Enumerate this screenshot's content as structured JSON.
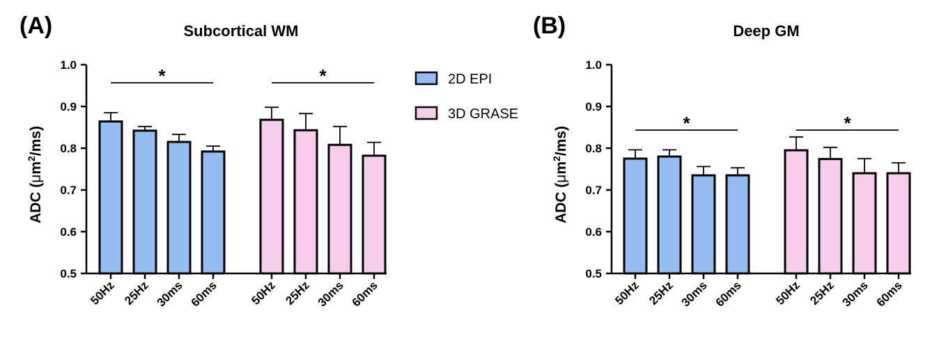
{
  "panels": [
    {
      "label": "(A)"
    },
    {
      "label": "(B)"
    }
  ],
  "legend": [
    {
      "name": "2D EPI",
      "color": "#94bdf2"
    },
    {
      "name": "3D GRASE",
      "color": "#f6cdeb"
    }
  ],
  "chart_data": [
    {
      "type": "bar",
      "title": "Subcortical WM",
      "ylabel": "ADC (μm²/ms)",
      "ylabel_parts": {
        "pre": "ADC (",
        "mu": "μ",
        "m": "m",
        "sup": "2",
        "post": "/ms)"
      },
      "ylim": [
        0.5,
        1.0
      ],
      "yticks": [
        "0.5",
        "0.6",
        "0.7",
        "0.8",
        "0.9",
        "1.0"
      ],
      "categories": [
        "50Hz",
        "25Hz",
        "30ms",
        "60ms"
      ],
      "series": [
        {
          "name": "2D EPI",
          "values": [
            0.864,
            0.842,
            0.815,
            0.792
          ],
          "errors": [
            0.021,
            0.01,
            0.018,
            0.013
          ]
        },
        {
          "name": "3D GRASE",
          "values": [
            0.868,
            0.843,
            0.808,
            0.782
          ],
          "errors": [
            0.03,
            0.04,
            0.044,
            0.032
          ]
        }
      ],
      "annotations": [
        "*",
        "*"
      ]
    },
    {
      "type": "bar",
      "title": "Deep GM",
      "ylabel": "ADC (μm²/ms)",
      "ylabel_parts": {
        "pre": "ADC (",
        "mu": "μ",
        "m": "m",
        "sup": "2",
        "post": "/ms)"
      },
      "ylim": [
        0.5,
        1.0
      ],
      "yticks": [
        "0.5",
        "0.6",
        "0.7",
        "0.8",
        "0.9",
        "1.0"
      ],
      "categories": [
        "50Hz",
        "25Hz",
        "30ms",
        "60ms"
      ],
      "series": [
        {
          "name": "2D EPI",
          "values": [
            0.775,
            0.78,
            0.735,
            0.735
          ],
          "errors": [
            0.021,
            0.016,
            0.021,
            0.018
          ]
        },
        {
          "name": "3D GRASE",
          "values": [
            0.795,
            0.774,
            0.74,
            0.74
          ],
          "errors": [
            0.032,
            0.028,
            0.035,
            0.025
          ]
        }
      ],
      "annotations": [
        "*",
        "*"
      ]
    }
  ]
}
